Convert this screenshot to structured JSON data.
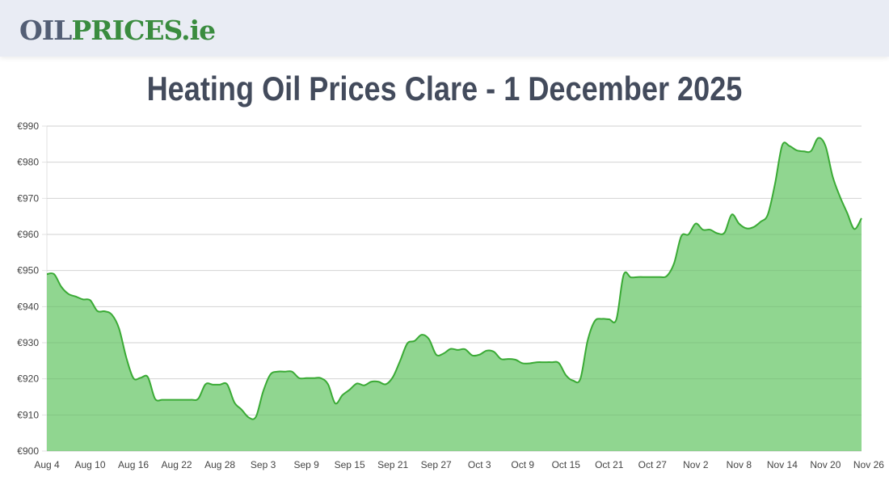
{
  "header": {
    "logo_part1": "OIL",
    "logo_part2": "PRICES.ie"
  },
  "page": {
    "title": "Heating Oil Prices Clare - 1 December 2025"
  },
  "colors": {
    "line": "#3aaa35",
    "fill": "#90d690",
    "grid": "#e2e2e2",
    "header_bg": "#e9ecf4",
    "title": "#434b5c"
  },
  "chart_data": {
    "type": "area",
    "title": "Heating Oil Prices Clare - 1 December 2025",
    "xlabel": "",
    "ylabel": "",
    "ylim": [
      900,
      990
    ],
    "yticks": [
      "€900",
      "€910",
      "€920",
      "€930",
      "€940",
      "€950",
      "€960",
      "€970",
      "€980",
      "€990"
    ],
    "xticks": [
      "Aug 4",
      "Aug 10",
      "Aug 16",
      "Aug 22",
      "Aug 28",
      "Sep 3",
      "Sep 9",
      "Sep 15",
      "Sep 21",
      "Sep 27",
      "Oct 3",
      "Oct 9",
      "Oct 15",
      "Oct 21",
      "Oct 27",
      "Nov 2",
      "Nov 8",
      "Nov 14",
      "Nov 20",
      "Nov 26"
    ],
    "grid": true,
    "legend": null,
    "x_unit": "days since Aug 4 2025",
    "points": [
      [
        0,
        949
      ],
      [
        1,
        949
      ],
      [
        2,
        945.5
      ],
      [
        3,
        943.5
      ],
      [
        4,
        942.8
      ],
      [
        5,
        942
      ],
      [
        6,
        941.8
      ],
      [
        7,
        938.8
      ],
      [
        8,
        938.7
      ],
      [
        9,
        937.8
      ],
      [
        10,
        934
      ],
      [
        11,
        926
      ],
      [
        12,
        920.2
      ],
      [
        13,
        920.3
      ],
      [
        14,
        920.5
      ],
      [
        15,
        914.5
      ],
      [
        16,
        914.2
      ],
      [
        17,
        914.2
      ],
      [
        18,
        914.2
      ],
      [
        19,
        914.2
      ],
      [
        20,
        914.2
      ],
      [
        21,
        914.5
      ],
      [
        22,
        918.5
      ],
      [
        23,
        918.4
      ],
      [
        24,
        918.4
      ],
      [
        25,
        918.5
      ],
      [
        26,
        913.5
      ],
      [
        27,
        911.5
      ],
      [
        28,
        909.3
      ],
      [
        29,
        909.5
      ],
      [
        30,
        916.5
      ],
      [
        31,
        921.2
      ],
      [
        32,
        922
      ],
      [
        33,
        922
      ],
      [
        34,
        922
      ],
      [
        35,
        920.2
      ],
      [
        36,
        920.2
      ],
      [
        37,
        920.2
      ],
      [
        38,
        920.2
      ],
      [
        39,
        918.5
      ],
      [
        40,
        913.2
      ],
      [
        41,
        915.5
      ],
      [
        42,
        917
      ],
      [
        43,
        918.7
      ],
      [
        44,
        918.2
      ],
      [
        45,
        919.2
      ],
      [
        46,
        919.2
      ],
      [
        47,
        918.5
      ],
      [
        48,
        920.5
      ],
      [
        49,
        925
      ],
      [
        50,
        929.8
      ],
      [
        51,
        930.5
      ],
      [
        52,
        932.2
      ],
      [
        53,
        931
      ],
      [
        54,
        926.7
      ],
      [
        55,
        927
      ],
      [
        56,
        928.3
      ],
      [
        57,
        928
      ],
      [
        58,
        928.2
      ],
      [
        59,
        926.5
      ],
      [
        60,
        926.7
      ],
      [
        61,
        927.8
      ],
      [
        62,
        927.5
      ],
      [
        63,
        925.5
      ],
      [
        64,
        925.5
      ],
      [
        65,
        925.3
      ],
      [
        66,
        924.3
      ],
      [
        67,
        924.3
      ],
      [
        68,
        924.6
      ],
      [
        69,
        924.6
      ],
      [
        70,
        924.6
      ],
      [
        71,
        924.4
      ],
      [
        72,
        921
      ],
      [
        73,
        919.5
      ],
      [
        74,
        920
      ],
      [
        75,
        930.5
      ],
      [
        76,
        936
      ],
      [
        77,
        936.6
      ],
      [
        78,
        936.5
      ],
      [
        79,
        936.5
      ],
      [
        80,
        948.8
      ],
      [
        81,
        948.1
      ],
      [
        82,
        948.2
      ],
      [
        83,
        948.2
      ],
      [
        84,
        948.2
      ],
      [
        85,
        948.2
      ],
      [
        86,
        948.5
      ],
      [
        87,
        952
      ],
      [
        88,
        959.5
      ],
      [
        89,
        960
      ],
      [
        90,
        963
      ],
      [
        91,
        961.3
      ],
      [
        92,
        961.3
      ],
      [
        93,
        960.3
      ],
      [
        94,
        960.5
      ],
      [
        95,
        965.5
      ],
      [
        96,
        963
      ],
      [
        97,
        961.7
      ],
      [
        98,
        962
      ],
      [
        99,
        963.5
      ],
      [
        100,
        965.5
      ],
      [
        101,
        974
      ],
      [
        102,
        984.7
      ],
      [
        103,
        984.5
      ],
      [
        104,
        983.3
      ],
      [
        105,
        983
      ],
      [
        106,
        983.1
      ],
      [
        107,
        986.7
      ],
      [
        108,
        984.5
      ],
      [
        109,
        976
      ],
      [
        110,
        970.5
      ],
      [
        111,
        966
      ],
      [
        112,
        961.5
      ],
      [
        113,
        964.5
      ]
    ]
  }
}
